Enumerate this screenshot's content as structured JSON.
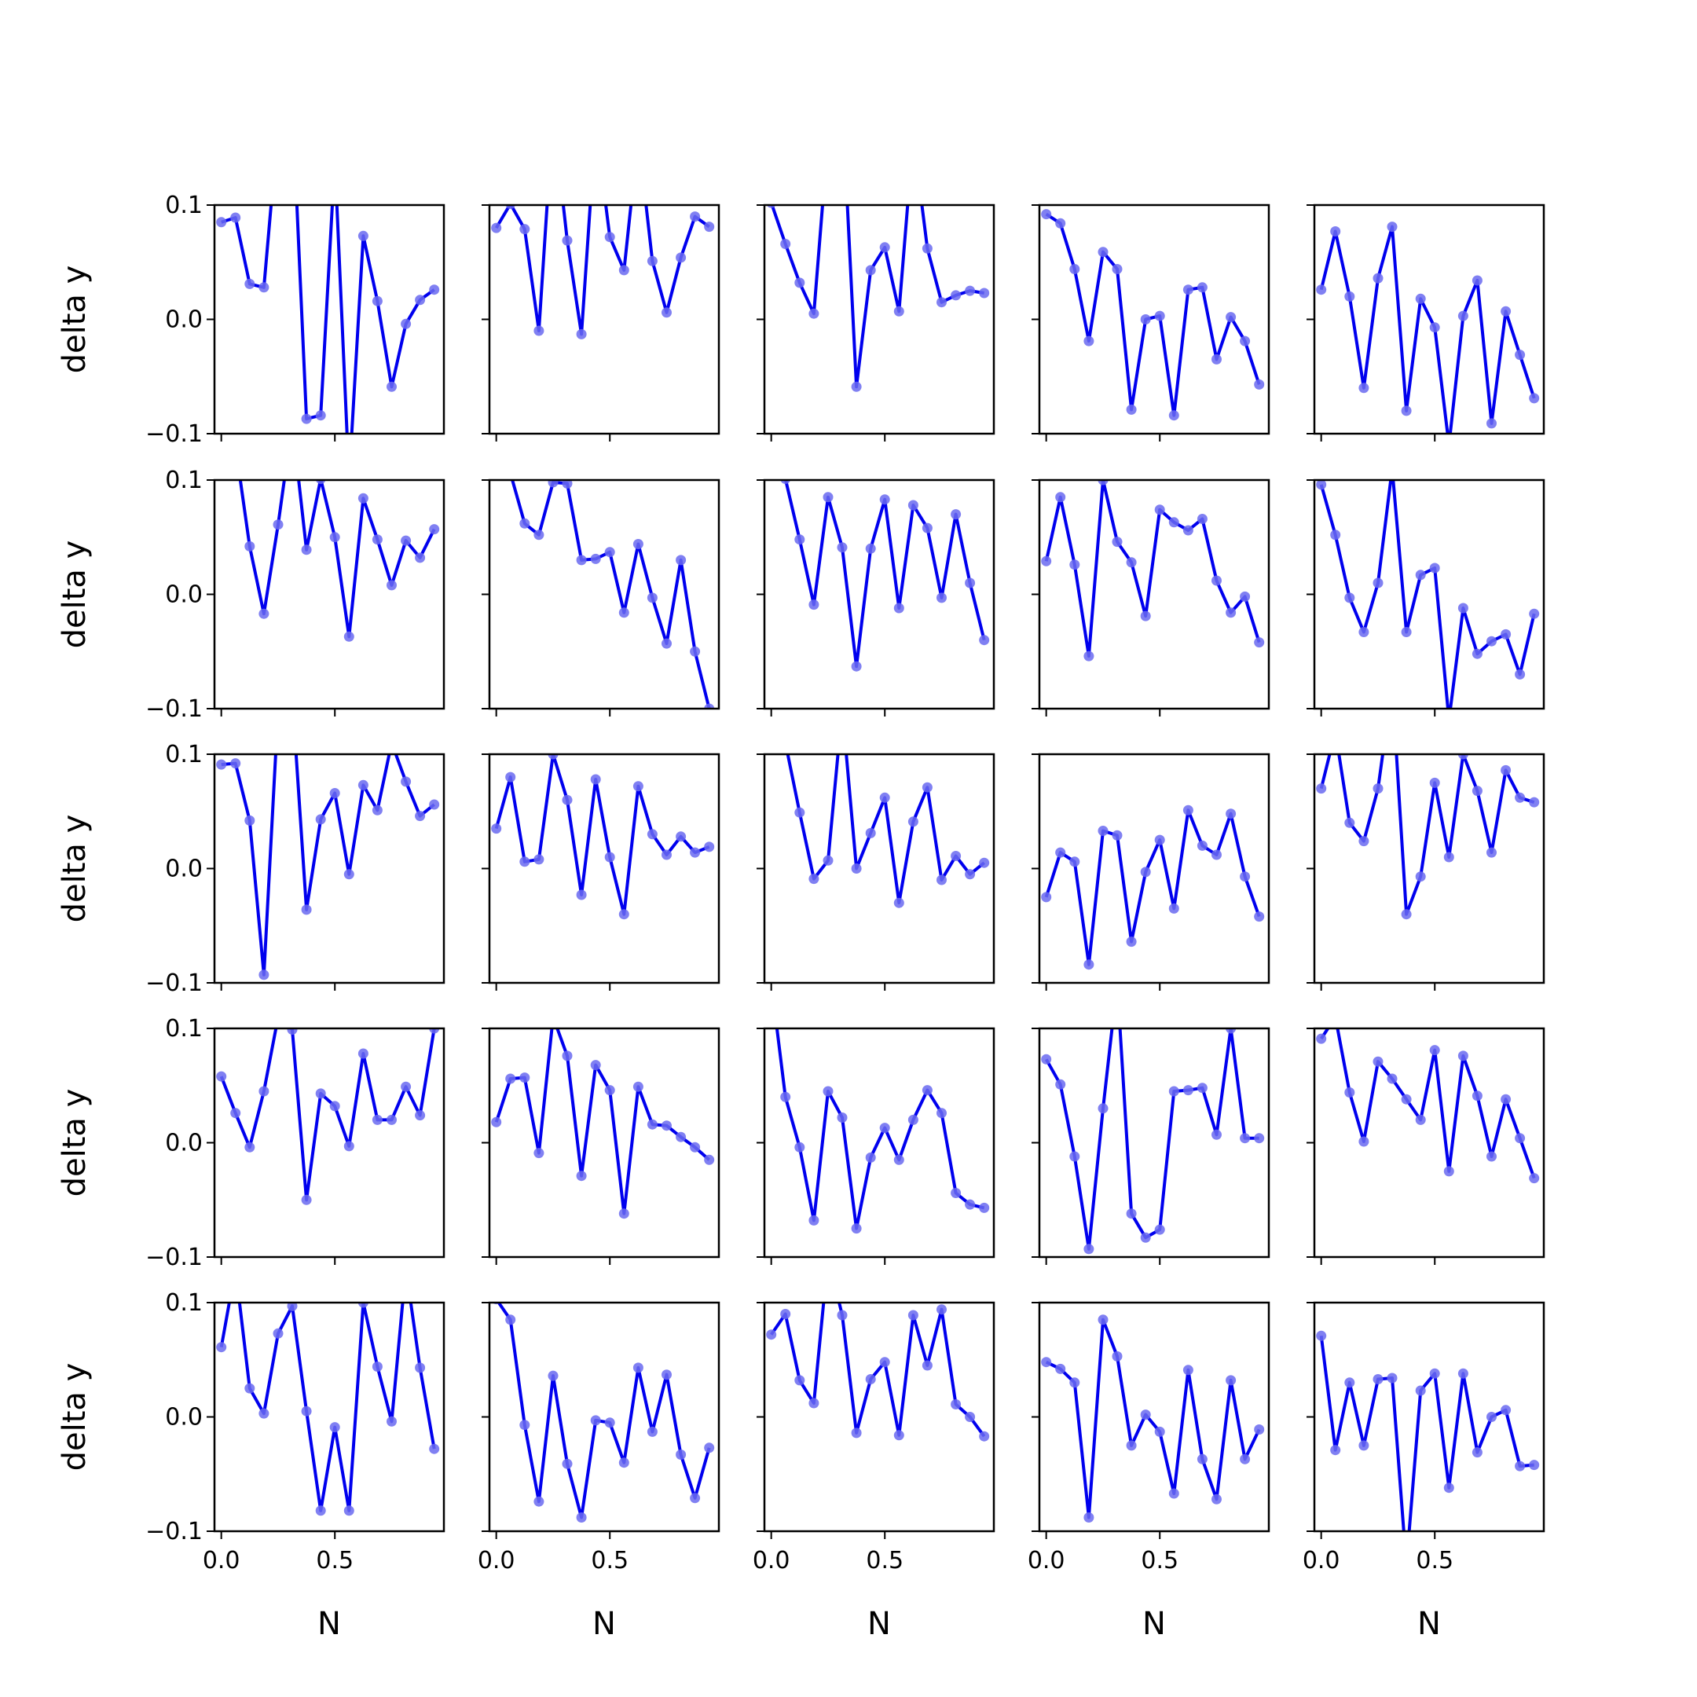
{
  "chart_data": {
    "type": "line",
    "layout": "5x5 grid of subplots with shared axes",
    "xlabel": "N",
    "ylabel": "delta y",
    "xlim": [
      -0.03,
      0.98
    ],
    "ylim": [
      -0.1,
      0.1
    ],
    "xticks": [
      0.0,
      0.5
    ],
    "xtick_labels": [
      "0.0",
      "0.5"
    ],
    "yticks": [
      -0.1,
      0.0,
      0.1
    ],
    "ytick_labels": [
      "−0.1",
      "0.0",
      "0.1"
    ],
    "grid": false,
    "legend": "none",
    "line_color": "#0000ee",
    "marker_color": "#6a6af0",
    "x": [
      0.0,
      0.0625,
      0.125,
      0.1875,
      0.25,
      0.3125,
      0.375,
      0.4375,
      0.5,
      0.5625,
      0.625,
      0.6875,
      0.75,
      0.8125,
      0.875,
      0.9375
    ],
    "panels": [
      {
        "values": [
          0.085,
          0.089,
          0.031,
          0.028,
          0.17,
          0.19,
          -0.087,
          -0.084,
          0.14,
          -0.14,
          0.073,
          0.016,
          -0.059,
          -0.004,
          0.017,
          0.026
        ]
      },
      {
        "values": [
          0.08,
          0.101,
          0.079,
          -0.01,
          0.18,
          0.069,
          -0.013,
          0.17,
          0.072,
          0.043,
          0.16,
          0.051,
          0.006,
          0.054,
          0.09,
          0.081
        ]
      },
      {
        "values": [
          0.102,
          0.066,
          0.032,
          0.005,
          0.16,
          0.19,
          -0.059,
          0.043,
          0.063,
          0.007,
          0.16,
          0.062,
          0.015,
          0.021,
          0.025,
          0.023
        ]
      },
      {
        "values": [
          0.092,
          0.084,
          0.044,
          -0.019,
          0.059,
          0.044,
          -0.079,
          0.0,
          0.003,
          -0.084,
          0.026,
          0.028,
          -0.035,
          0.002,
          -0.019,
          -0.057
        ]
      },
      {
        "values": [
          0.026,
          0.077,
          0.02,
          -0.06,
          0.036,
          0.081,
          -0.08,
          0.018,
          -0.007,
          -0.11,
          0.003,
          0.034,
          -0.091,
          0.007,
          -0.031,
          -0.069
        ]
      },
      {
        "values": [
          0.14,
          0.13,
          0.042,
          -0.017,
          0.061,
          0.15,
          0.039,
          0.101,
          0.05,
          -0.037,
          0.084,
          0.048,
          0.008,
          0.047,
          0.032,
          0.057
        ]
      },
      {
        "values": [
          0.14,
          0.106,
          0.062,
          0.052,
          0.098,
          0.097,
          0.03,
          0.031,
          0.037,
          -0.016,
          0.044,
          -0.003,
          -0.043,
          0.03,
          -0.05,
          -0.1
        ]
      },
      {
        "values": [
          0.15,
          0.101,
          0.048,
          -0.009,
          0.085,
          0.041,
          -0.063,
          0.04,
          0.083,
          -0.012,
          0.078,
          0.058,
          -0.003,
          0.07,
          0.01,
          -0.04
        ]
      },
      {
        "values": [
          0.029,
          0.085,
          0.026,
          -0.054,
          0.1,
          0.046,
          0.028,
          -0.019,
          0.074,
          0.063,
          0.056,
          0.066,
          0.012,
          -0.016,
          -0.002,
          -0.042
        ]
      },
      {
        "values": [
          0.096,
          0.052,
          -0.003,
          -0.033,
          0.01,
          0.11,
          -0.033,
          0.017,
          0.023,
          -0.11,
          -0.012,
          -0.052,
          -0.041,
          -0.035,
          -0.07,
          -0.017
        ]
      },
      {
        "values": [
          0.091,
          0.092,
          0.042,
          -0.093,
          0.14,
          0.15,
          -0.036,
          0.043,
          0.066,
          -0.005,
          0.073,
          0.051,
          0.11,
          0.076,
          0.046,
          0.056
        ]
      },
      {
        "values": [
          0.035,
          0.08,
          0.006,
          0.008,
          0.1,
          0.06,
          -0.023,
          0.078,
          0.01,
          -0.04,
          0.072,
          0.03,
          0.012,
          0.028,
          0.014,
          0.019
        ]
      },
      {
        "values": [
          0.15,
          0.11,
          0.049,
          -0.009,
          0.007,
          0.14,
          0.0,
          0.031,
          0.062,
          -0.03,
          0.041,
          0.071,
          -0.01,
          0.011,
          -0.005,
          0.005
        ]
      },
      {
        "values": [
          -0.025,
          0.014,
          0.006,
          -0.084,
          0.033,
          0.029,
          -0.064,
          -0.003,
          0.025,
          -0.035,
          0.051,
          0.02,
          0.012,
          0.048,
          -0.007,
          -0.042
        ]
      },
      {
        "values": [
          0.07,
          0.12,
          0.04,
          0.024,
          0.07,
          0.16,
          -0.04,
          -0.007,
          0.075,
          0.01,
          0.1,
          0.068,
          0.014,
          0.086,
          0.062,
          0.058
        ]
      },
      {
        "values": [
          0.058,
          0.026,
          -0.004,
          0.045,
          0.11,
          0.099,
          -0.05,
          0.043,
          0.032,
          -0.003,
          0.078,
          0.02,
          0.02,
          0.049,
          0.024,
          0.1
        ]
      },
      {
        "values": [
          0.018,
          0.056,
          0.057,
          -0.009,
          0.11,
          0.076,
          -0.029,
          0.068,
          0.046,
          -0.062,
          0.049,
          0.016,
          0.015,
          0.005,
          -0.004,
          -0.015
        ]
      },
      {
        "values": [
          0.14,
          0.04,
          -0.004,
          -0.068,
          0.045,
          0.022,
          -0.075,
          -0.013,
          0.013,
          -0.015,
          0.02,
          0.046,
          0.026,
          -0.044,
          -0.054,
          -0.057
        ]
      },
      {
        "values": [
          0.073,
          0.051,
          -0.012,
          -0.093,
          0.03,
          0.14,
          -0.062,
          -0.083,
          -0.076,
          0.045,
          0.046,
          0.048,
          0.007,
          0.1,
          0.004,
          0.004
        ]
      },
      {
        "values": [
          0.091,
          0.11,
          0.044,
          0.001,
          0.071,
          0.056,
          0.038,
          0.02,
          0.081,
          -0.025,
          0.076,
          0.041,
          -0.012,
          0.038,
          0.004,
          -0.031
        ]
      },
      {
        "values": [
          0.061,
          0.13,
          0.025,
          0.003,
          0.073,
          0.097,
          0.005,
          -0.082,
          -0.009,
          -0.082,
          0.1,
          0.044,
          -0.004,
          0.13,
          0.043,
          -0.028
        ]
      },
      {
        "values": [
          0.103,
          0.085,
          -0.007,
          -0.074,
          0.036,
          -0.041,
          -0.088,
          -0.003,
          -0.005,
          -0.04,
          0.043,
          -0.013,
          0.037,
          -0.033,
          -0.071,
          -0.027
        ]
      },
      {
        "values": [
          0.072,
          0.09,
          0.032,
          0.012,
          0.14,
          0.089,
          -0.014,
          0.033,
          0.048,
          -0.016,
          0.089,
          0.045,
          0.094,
          0.011,
          0.0,
          -0.017
        ]
      },
      {
        "values": [
          0.048,
          0.042,
          0.03,
          -0.088,
          0.085,
          0.053,
          -0.025,
          0.002,
          -0.013,
          -0.067,
          0.041,
          -0.037,
          -0.072,
          0.032,
          -0.037,
          -0.011
        ]
      },
      {
        "values": [
          0.071,
          -0.029,
          0.03,
          -0.025,
          0.033,
          0.034,
          -0.13,
          0.023,
          0.038,
          -0.062,
          0.038,
          -0.031,
          0.0,
          0.006,
          -0.043,
          -0.042
        ]
      }
    ]
  }
}
